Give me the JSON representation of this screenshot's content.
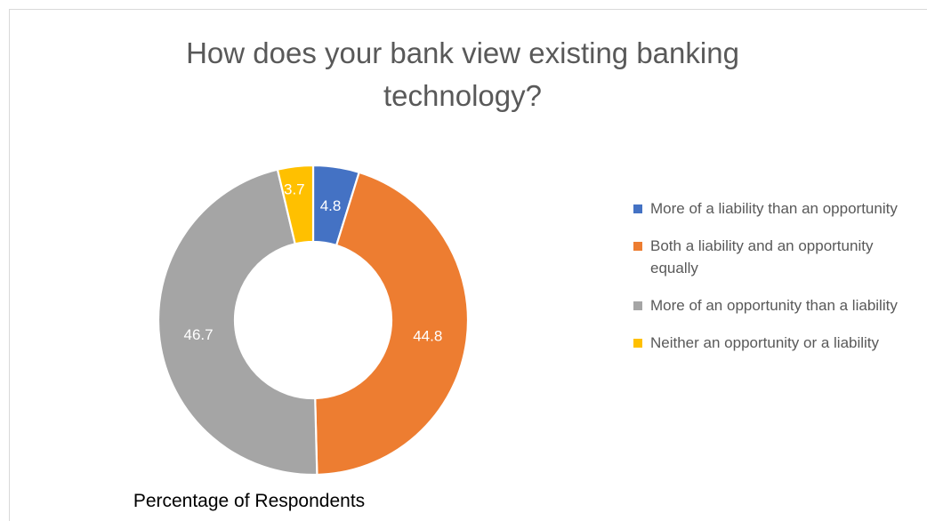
{
  "chart_data": {
    "type": "pie",
    "donut": true,
    "title": "How does your bank view existing banking technology?",
    "xlabel": "Percentage of Respondents",
    "legend_position": "right",
    "categories": [
      "More of a liability than an opportunity",
      "Both a liability and an opportunity equally",
      "More of an opportunity than a liability",
      "Neither an opportunity or a liability"
    ],
    "values": [
      4.8,
      44.8,
      46.7,
      3.7
    ],
    "data_labels": [
      "4.8",
      "44.8",
      "46.7",
      "3.7"
    ],
    "colors": [
      "#4472c4",
      "#ed7d31",
      "#a5a5a5",
      "#ffc000"
    ]
  }
}
